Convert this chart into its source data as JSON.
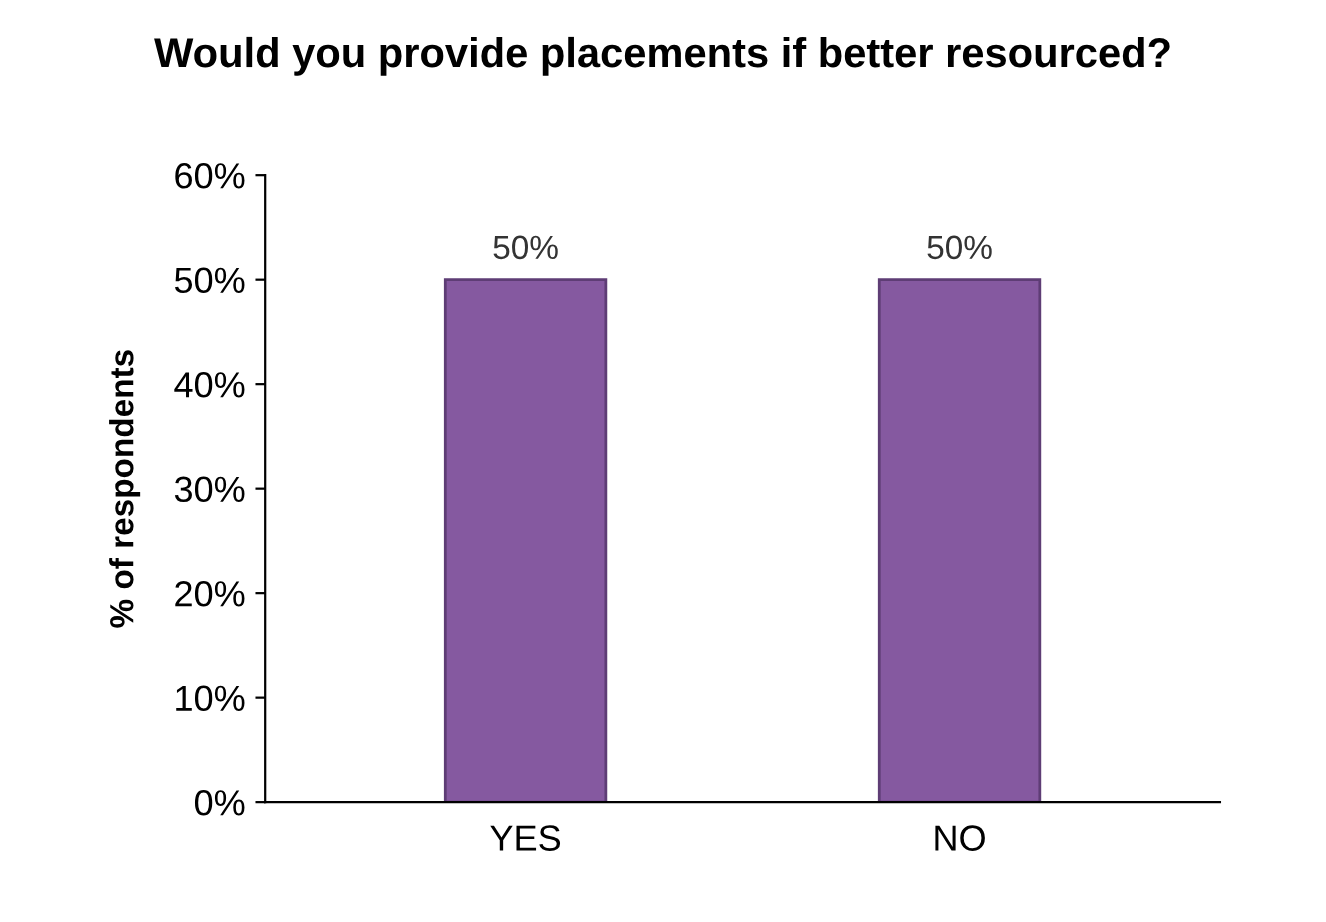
{
  "chart_data": {
    "type": "bar",
    "title": "Would you provide placements if better resourced?",
    "ylabel": "% of respondents",
    "categories": [
      "YES",
      "NO"
    ],
    "values": [
      50,
      50
    ],
    "color": "#8559a0",
    "value_labels": [
      "50%",
      "50%"
    ],
    "ylim": [
      0,
      60
    ],
    "yticks": [
      {
        "value": 0,
        "label": "0%"
      },
      {
        "value": 10,
        "label": "10%"
      },
      {
        "value": 20,
        "label": "20%"
      },
      {
        "value": 30,
        "label": "30%"
      },
      {
        "value": 40,
        "label": "40%"
      },
      {
        "value": 50,
        "label": "50%"
      },
      {
        "value": 60,
        "label": "60%"
      }
    ],
    "grid": false,
    "legend": false
  }
}
